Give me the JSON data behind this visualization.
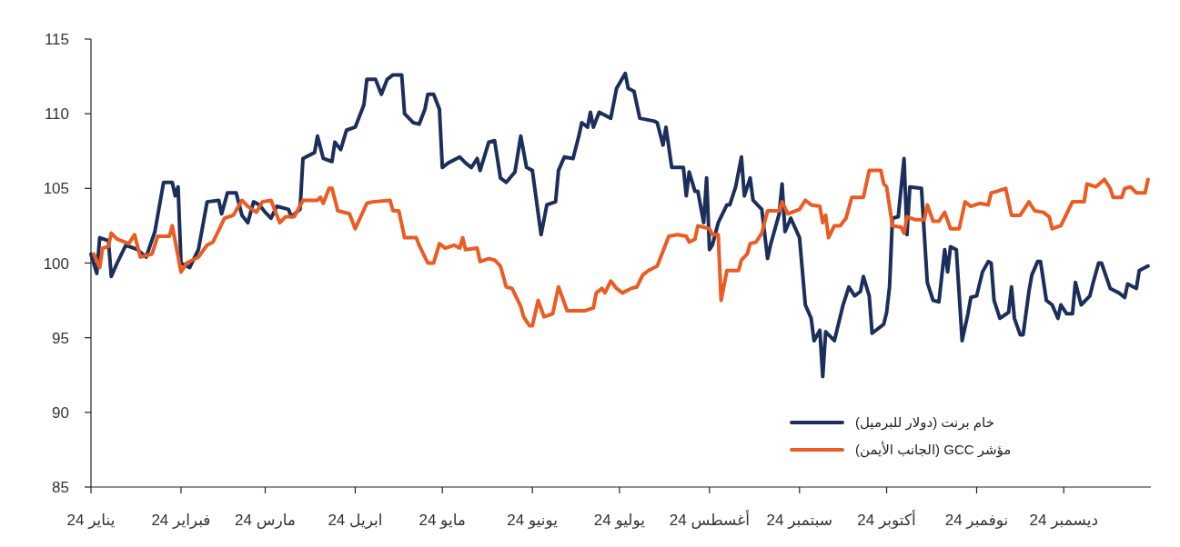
{
  "chart_data": {
    "type": "line",
    "xlim": [
      "2024-01-01",
      "2024-12-31"
    ],
    "xticks": [
      {
        "value": "2024-01-01",
        "label": "يناير 24"
      },
      {
        "value": "2024-02-01",
        "label": "فبراير 24"
      },
      {
        "value": "2024-03-01",
        "label": "مارس 24"
      },
      {
        "value": "2024-04-01",
        "label": "ابريل 24"
      },
      {
        "value": "2024-05-01",
        "label": "مايو 24"
      },
      {
        "value": "2024-06-01",
        "label": "يونيو 24"
      },
      {
        "value": "2024-07-01",
        "label": "يوليو 24"
      },
      {
        "value": "2024-08-01",
        "label": "أغسطس 24"
      },
      {
        "value": "2024-09-01",
        "label": "سبتمبر 24"
      },
      {
        "value": "2024-10-01",
        "label": "أكتوبر 24"
      },
      {
        "value": "2024-11-01",
        "label": "نوفمبر 24"
      },
      {
        "value": "2024-12-01",
        "label": "ديسمبر 24"
      }
    ],
    "ylim": [
      85,
      115
    ],
    "yticks": [
      85,
      90,
      95,
      100,
      105,
      110,
      115
    ],
    "grid": false,
    "legend": "bottom right",
    "line_style": "solid",
    "marker": "none",
    "series": [
      {
        "name": "خام برنت (دولار للبرميل)",
        "color": "#1c2f5c",
        "x": [
          "2024-01-01",
          "2024-01-03",
          "2024-01-04",
          "2024-01-07",
          "2024-01-08",
          "2024-01-10",
          "2024-01-13",
          "2024-01-17",
          "2024-01-20",
          "2024-01-23",
          "2024-01-26",
          "2024-01-29",
          "2024-01-30",
          "2024-01-31",
          "2024-02-01",
          "2024-02-04",
          "2024-02-07",
          "2024-02-10",
          "2024-02-14",
          "2024-02-15",
          "2024-02-17",
          "2024-02-20",
          "2024-02-22",
          "2024-02-24",
          "2024-02-26",
          "2024-02-28",
          "2024-03-01",
          "2024-03-03",
          "2024-03-05",
          "2024-03-09",
          "2024-03-10",
          "2024-03-13",
          "2024-03-14",
          "2024-03-18",
          "2024-03-19",
          "2024-03-21",
          "2024-03-24",
          "2024-03-25",
          "2024-03-27",
          "2024-03-29",
          "2024-04-01",
          "2024-04-04",
          "2024-04-05",
          "2024-04-08",
          "2024-04-10",
          "2024-04-12",
          "2024-04-14",
          "2024-04-17",
          "2024-04-18",
          "2024-04-21",
          "2024-04-23",
          "2024-04-25",
          "2024-04-26",
          "2024-04-28",
          "2024-04-30",
          "2024-05-01",
          "2024-05-03",
          "2024-05-07",
          "2024-05-09",
          "2024-05-11",
          "2024-05-13",
          "2024-05-14",
          "2024-05-17",
          "2024-05-19",
          "2024-05-21",
          "2024-05-23",
          "2024-05-26",
          "2024-05-28",
          "2024-05-30",
          "2024-06-01",
          "2024-06-04",
          "2024-06-06",
          "2024-06-09",
          "2024-06-10",
          "2024-06-12",
          "2024-06-15",
          "2024-06-17",
          "2024-06-18",
          "2024-06-20",
          "2024-06-21",
          "2024-06-22",
          "2024-06-24",
          "2024-06-28",
          "2024-06-30",
          "2024-07-03",
          "2024-07-04",
          "2024-07-06",
          "2024-07-08",
          "2024-07-13",
          "2024-07-14",
          "2024-07-16",
          "2024-07-17",
          "2024-07-19",
          "2024-07-23",
          "2024-07-24",
          "2024-07-25",
          "2024-07-27",
          "2024-07-28",
          "2024-07-30",
          "2024-07-31",
          "2024-08-01",
          "2024-08-02",
          "2024-08-04",
          "2024-08-07",
          "2024-08-08",
          "2024-08-10",
          "2024-08-12",
          "2024-08-13",
          "2024-08-15",
          "2024-08-16",
          "2024-08-19",
          "2024-08-21",
          "2024-08-22",
          "2024-08-25",
          "2024-08-26",
          "2024-08-27",
          "2024-08-29",
          "2024-09-01",
          "2024-09-03",
          "2024-09-05",
          "2024-09-06",
          "2024-09-08",
          "2024-09-09",
          "2024-09-10",
          "2024-09-13",
          "2024-09-16",
          "2024-09-18",
          "2024-09-20",
          "2024-09-22",
          "2024-09-23",
          "2024-09-25",
          "2024-09-26",
          "2024-09-30",
          "2024-10-01",
          "2024-10-02",
          "2024-10-03",
          "2024-10-05",
          "2024-10-07",
          "2024-10-08",
          "2024-10-09",
          "2024-10-13",
          "2024-10-15",
          "2024-10-17",
          "2024-10-19",
          "2024-10-21",
          "2024-10-22",
          "2024-10-23",
          "2024-10-25",
          "2024-10-27",
          "2024-10-29",
          "2024-10-30",
          "2024-11-01",
          "2024-11-03",
          "2024-11-05",
          "2024-11-06",
          "2024-11-07",
          "2024-11-09",
          "2024-11-12",
          "2024-11-13",
          "2024-11-14",
          "2024-11-16",
          "2024-11-17",
          "2024-11-19",
          "2024-11-20",
          "2024-11-22",
          "2024-11-23",
          "2024-11-25",
          "2024-11-27",
          "2024-11-29",
          "2024-11-30",
          "2024-12-02",
          "2024-12-04",
          "2024-12-05",
          "2024-12-07",
          "2024-12-10",
          "2024-12-11",
          "2024-12-13",
          "2024-12-14",
          "2024-12-17",
          "2024-12-20",
          "2024-12-22",
          "2024-12-23",
          "2024-12-26",
          "2024-12-27",
          "2024-12-30"
        ],
        "values": [
          100.6,
          99.3,
          101.7,
          101.5,
          99.1,
          100.0,
          101.2,
          100.9,
          100.4,
          102.1,
          105.4,
          105.4,
          104.5,
          105.1,
          100.0,
          99.7,
          100.9,
          104.1,
          104.2,
          103.3,
          104.7,
          104.7,
          103.2,
          102.7,
          104.1,
          103.9,
          103.4,
          103.0,
          103.8,
          103.6,
          103.1,
          103.6,
          107.0,
          107.4,
          108.5,
          107.0,
          106.8,
          108.1,
          107.6,
          108.9,
          109.1,
          110.6,
          112.3,
          112.3,
          111.3,
          112.3,
          112.6,
          112.6,
          110.0,
          109.4,
          109.3,
          110.3,
          111.3,
          111.3,
          110.3,
          106.4,
          106.7,
          107.1,
          106.7,
          106.4,
          107.0,
          106.2,
          108.1,
          108.2,
          105.7,
          105.4,
          106.1,
          108.5,
          106.4,
          106.2,
          101.9,
          103.9,
          104.1,
          106.2,
          107.1,
          107.0,
          108.5,
          109.4,
          109.1,
          110.1,
          109.1,
          110.1,
          109.7,
          111.7,
          112.7,
          111.7,
          111.5,
          109.7,
          109.5,
          109.4,
          107.9,
          109.1,
          106.4,
          106.4,
          104.5,
          106.1,
          104.8,
          104.8,
          102.7,
          105.7,
          100.9,
          101.2,
          102.7,
          103.9,
          103.9,
          105.1,
          107.1,
          104.5,
          105.7,
          104.2,
          103.6,
          100.3,
          101.2,
          103.3,
          105.3,
          102.1,
          103.0,
          101.7,
          97.2,
          96.3,
          94.8,
          95.5,
          92.4,
          95.4,
          94.8,
          97.2,
          98.4,
          97.8,
          98.1,
          99.1,
          97.8,
          95.3,
          95.9,
          96.7,
          98.4,
          103.0,
          103.1,
          107.0,
          101.9,
          105.1,
          105.0,
          98.7,
          97.5,
          97.4,
          100.9,
          99.4,
          101.1,
          100.9,
          94.8,
          96.6,
          97.7,
          97.8,
          99.4,
          100.1,
          100.0,
          97.5,
          96.3,
          96.7,
          98.4,
          96.3,
          95.2,
          95.2,
          98.1,
          99.2,
          100.1,
          100.1,
          97.5,
          97.2,
          96.3,
          97.2,
          96.6,
          96.6,
          98.7,
          97.2,
          97.8,
          98.6,
          100.0,
          100.0,
          98.3,
          98.0,
          97.7,
          98.6,
          98.3,
          99.5,
          99.8
        ]
      },
      {
        "name": "مؤشر GCC (الجانب الأيمن)",
        "color": "#eb5b22",
        "x": [
          "2024-01-02",
          "2024-01-04",
          "2024-01-05",
          "2024-01-07",
          "2024-01-08",
          "2024-01-10",
          "2024-01-14",
          "2024-01-16",
          "2024-01-18",
          "2024-01-22",
          "2024-01-24",
          "2024-01-28",
          "2024-01-29",
          "2024-02-01",
          "2024-02-03",
          "2024-02-07",
          "2024-02-10",
          "2024-02-12",
          "2024-02-16",
          "2024-02-19",
          "2024-02-22",
          "2024-02-24",
          "2024-02-27",
          "2024-02-29",
          "2024-03-03",
          "2024-03-06",
          "2024-03-08",
          "2024-03-11",
          "2024-03-14",
          "2024-03-19",
          "2024-03-20",
          "2024-03-21",
          "2024-03-23",
          "2024-03-24",
          "2024-03-26",
          "2024-03-30",
          "2024-04-01",
          "2024-04-05",
          "2024-04-07",
          "2024-04-13",
          "2024-04-14",
          "2024-04-16",
          "2024-04-18",
          "2024-04-22",
          "2024-04-23",
          "2024-04-26",
          "2024-04-28",
          "2024-04-30",
          "2024-05-02",
          "2024-05-05",
          "2024-05-07",
          "2024-05-08",
          "2024-05-09",
          "2024-05-13",
          "2024-05-14",
          "2024-05-17",
          "2024-05-19",
          "2024-05-21",
          "2024-05-23",
          "2024-05-25",
          "2024-05-28",
          "2024-05-29",
          "2024-05-31",
          "2024-06-01",
          "2024-06-03",
          "2024-06-05",
          "2024-06-08",
          "2024-06-10",
          "2024-06-13",
          "2024-06-19",
          "2024-06-22",
          "2024-06-23",
          "2024-06-25",
          "2024-06-26",
          "2024-06-28",
          "2024-06-30",
          "2024-07-02",
          "2024-07-05",
          "2024-07-07",
          "2024-07-09",
          "2024-07-11",
          "2024-07-14",
          "2024-07-18",
          "2024-07-21",
          "2024-07-24",
          "2024-07-25",
          "2024-07-27",
          "2024-07-28",
          "2024-08-01",
          "2024-08-02",
          "2024-08-04",
          "2024-08-05",
          "2024-08-07",
          "2024-08-11",
          "2024-08-12",
          "2024-08-14",
          "2024-08-15",
          "2024-08-17",
          "2024-08-19",
          "2024-08-21",
          "2024-08-25",
          "2024-08-26",
          "2024-08-28",
          "2024-09-01",
          "2024-09-03",
          "2024-09-05",
          "2024-09-08",
          "2024-09-09",
          "2024-09-10",
          "2024-09-11",
          "2024-09-13",
          "2024-09-15",
          "2024-09-17",
          "2024-09-19",
          "2024-09-23",
          "2024-09-25",
          "2024-09-29",
          "2024-09-30",
          "2024-10-01",
          "2024-10-03",
          "2024-10-06",
          "2024-10-07",
          "2024-10-08",
          "2024-10-11",
          "2024-10-14",
          "2024-10-15",
          "2024-10-17",
          "2024-10-19",
          "2024-10-21",
          "2024-10-23",
          "2024-10-26",
          "2024-10-28",
          "2024-10-30",
          "2024-11-02",
          "2024-11-05",
          "2024-11-06",
          "2024-11-08",
          "2024-11-11",
          "2024-11-13",
          "2024-11-16",
          "2024-11-19",
          "2024-11-21",
          "2024-11-24",
          "2024-11-26",
          "2024-11-27",
          "2024-11-30",
          "2024-12-04",
          "2024-12-08",
          "2024-12-09",
          "2024-12-12",
          "2024-12-15",
          "2024-12-17",
          "2024-12-18",
          "2024-12-21",
          "2024-12-22",
          "2024-12-24",
          "2024-12-26",
          "2024-12-29",
          "2024-12-30"
        ],
        "values": [
          100.6,
          99.7,
          101.0,
          101.1,
          102.0,
          101.6,
          101.3,
          101.9,
          100.4,
          100.6,
          101.8,
          101.8,
          102.5,
          99.4,
          100.0,
          100.4,
          101.2,
          101.4,
          103.0,
          103.2,
          104.2,
          103.8,
          103.4,
          104.1,
          104.2,
          102.7,
          103.1,
          103.1,
          104.2,
          104.2,
          104.4,
          104.0,
          105.0,
          105.0,
          103.5,
          103.3,
          102.3,
          104.0,
          104.1,
          104.2,
          103.5,
          103.5,
          101.7,
          101.7,
          101.2,
          100.0,
          100.0,
          101.3,
          101.0,
          101.2,
          101.0,
          101.7,
          100.9,
          101.0,
          100.1,
          100.3,
          100.2,
          99.8,
          98.4,
          98.3,
          97.1,
          96.4,
          95.8,
          95.8,
          97.5,
          96.4,
          96.6,
          98.4,
          96.8,
          96.8,
          97.0,
          98.0,
          98.3,
          98.0,
          98.8,
          98.3,
          98.0,
          98.3,
          98.4,
          99.2,
          99.5,
          99.8,
          101.8,
          101.9,
          101.8,
          101.4,
          101.6,
          102.5,
          102.3,
          101.9,
          101.9,
          97.5,
          99.5,
          99.5,
          100.2,
          100.6,
          101.3,
          101.4,
          102.0,
          103.5,
          103.5,
          104.1,
          103.3,
          103.6,
          104.2,
          103.9,
          103.8,
          102.7,
          103.2,
          101.7,
          102.5,
          102.5,
          103.0,
          104.4,
          104.4,
          106.2,
          106.2,
          105.3,
          105.1,
          102.5,
          102.4,
          102.0,
          103.1,
          102.9,
          102.9,
          103.9,
          102.8,
          102.8,
          103.4,
          102.3,
          102.3,
          104.1,
          103.8,
          104.0,
          103.9,
          104.7,
          104.8,
          105.0,
          103.2,
          103.2,
          104.1,
          103.5,
          103.4,
          103.1,
          102.3,
          102.5,
          104.1,
          104.1,
          105.3,
          105.1,
          105.6,
          105.0,
          104.4,
          104.4,
          105.0,
          105.1,
          104.7,
          104.7,
          105.6
        ]
      }
    ]
  }
}
